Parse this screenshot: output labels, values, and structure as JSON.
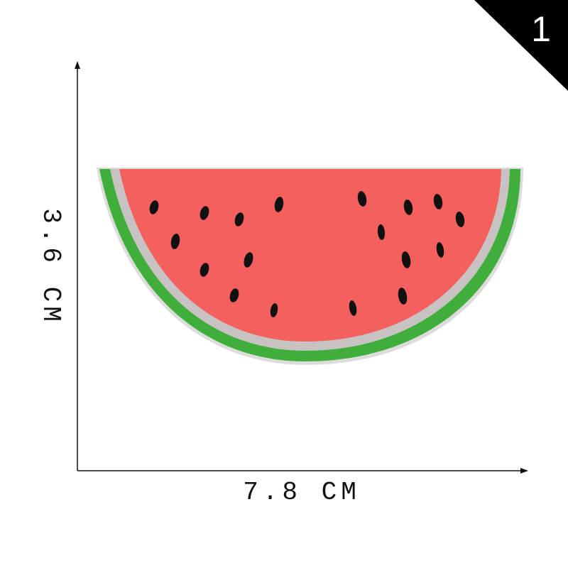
{
  "badge": "1",
  "height_label": "3.6 CM",
  "width_label": "7.8 CM"
}
